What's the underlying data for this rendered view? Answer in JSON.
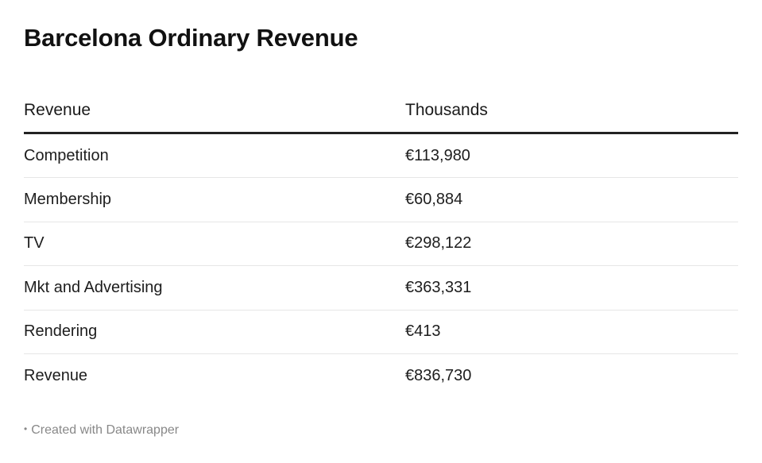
{
  "chart_data": {
    "type": "table",
    "title": "Barcelona Ordinary Revenue",
    "columns": [
      "Revenue",
      "Thousands"
    ],
    "rows": [
      {
        "label": "Competition",
        "value": "€113,980"
      },
      {
        "label": "Membership",
        "value": "€60,884"
      },
      {
        "label": "TV",
        "value": "€298,122"
      },
      {
        "label": "Mkt and Advertising",
        "value": "€363,331"
      },
      {
        "label": "Rendering",
        "value": "€413"
      },
      {
        "label": "Revenue",
        "value": "€836,730"
      }
    ],
    "values_thousands_eur": [
      113980,
      60884,
      298122,
      363331,
      413,
      836730
    ]
  },
  "footer": {
    "bullet": "•",
    "credit": "Created with Datawrapper"
  }
}
